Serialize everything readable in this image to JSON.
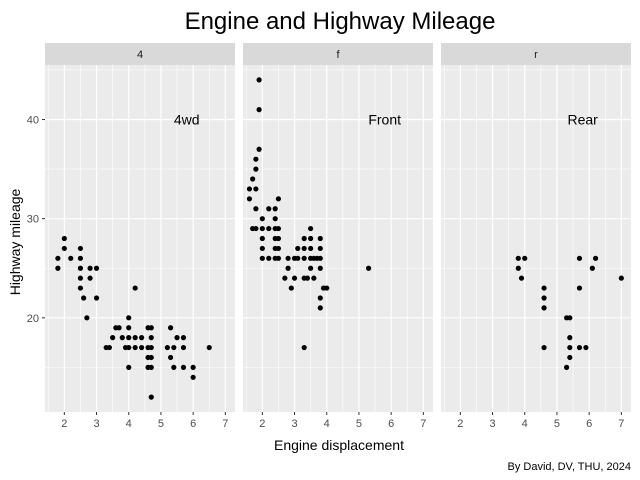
{
  "chart_data": {
    "type": "scatter",
    "title": "Engine and Highway Mileage",
    "xlabel": "Engine displacement",
    "ylabel": "Highway mileage",
    "caption": "By David, DV, THU, 2024",
    "xlim": [
      1.4,
      7.3
    ],
    "ylim": [
      10.5,
      45.5
    ],
    "x_ticks": [
      2,
      3,
      4,
      5,
      6,
      7
    ],
    "y_ticks": [
      20,
      30,
      40
    ],
    "grid": true,
    "panels": [
      {
        "strip": "4",
        "annotation": "4wd",
        "points": [
          [
            1.8,
            25
          ],
          [
            1.8,
            26
          ],
          [
            2.0,
            28
          ],
          [
            2.0,
            27
          ],
          [
            2.2,
            26
          ],
          [
            2.5,
            24
          ],
          [
            2.5,
            23
          ],
          [
            2.5,
            25
          ],
          [
            2.5,
            26
          ],
          [
            2.5,
            27
          ],
          [
            2.6,
            22
          ],
          [
            2.7,
            20
          ],
          [
            2.8,
            25
          ],
          [
            2.8,
            24
          ],
          [
            3.0,
            25
          ],
          [
            3.0,
            22
          ],
          [
            3.3,
            17
          ],
          [
            3.4,
            17
          ],
          [
            3.5,
            18
          ],
          [
            3.6,
            19
          ],
          [
            3.7,
            19
          ],
          [
            3.8,
            18
          ],
          [
            3.9,
            17
          ],
          [
            4.0,
            17
          ],
          [
            4.0,
            15
          ],
          [
            4.0,
            18
          ],
          [
            4.0,
            19
          ],
          [
            4.0,
            20
          ],
          [
            4.2,
            17
          ],
          [
            4.2,
            18
          ],
          [
            4.2,
            23
          ],
          [
            4.4,
            17
          ],
          [
            4.4,
            18
          ],
          [
            4.6,
            17
          ],
          [
            4.6,
            15
          ],
          [
            4.6,
            16
          ],
          [
            4.6,
            19
          ],
          [
            4.7,
            18
          ],
          [
            4.7,
            17
          ],
          [
            4.7,
            16
          ],
          [
            4.7,
            15
          ],
          [
            4.7,
            19
          ],
          [
            4.7,
            12
          ],
          [
            5.2,
            17
          ],
          [
            5.3,
            19
          ],
          [
            5.3,
            16
          ],
          [
            5.4,
            17
          ],
          [
            5.4,
            15
          ],
          [
            5.5,
            18
          ],
          [
            5.7,
            17
          ],
          [
            5.7,
            15
          ],
          [
            5.7,
            18
          ],
          [
            6.0,
            15
          ],
          [
            6.0,
            14
          ],
          [
            6.5,
            17
          ]
        ]
      },
      {
        "strip": "f",
        "annotation": "Front",
        "points": [
          [
            1.6,
            33
          ],
          [
            1.6,
            32
          ],
          [
            1.7,
            29
          ],
          [
            1.7,
            34
          ],
          [
            1.8,
            29
          ],
          [
            1.8,
            31
          ],
          [
            1.8,
            33
          ],
          [
            1.8,
            35
          ],
          [
            1.8,
            36
          ],
          [
            1.9,
            37
          ],
          [
            1.9,
            44
          ],
          [
            1.9,
            41
          ],
          [
            2.0,
            28
          ],
          [
            2.0,
            29
          ],
          [
            2.0,
            30
          ],
          [
            2.0,
            26
          ],
          [
            2.0,
            27
          ],
          [
            2.2,
            31
          ],
          [
            2.2,
            29
          ],
          [
            2.2,
            26
          ],
          [
            2.4,
            26
          ],
          [
            2.4,
            27
          ],
          [
            2.4,
            28
          ],
          [
            2.4,
            29
          ],
          [
            2.4,
            30
          ],
          [
            2.4,
            31
          ],
          [
            2.5,
            29
          ],
          [
            2.5,
            28
          ],
          [
            2.5,
            27
          ],
          [
            2.5,
            26
          ],
          [
            2.5,
            32
          ],
          [
            2.7,
            24
          ],
          [
            2.8,
            26
          ],
          [
            2.8,
            25
          ],
          [
            2.9,
            23
          ],
          [
            3.0,
            24
          ],
          [
            3.0,
            26
          ],
          [
            3.1,
            26
          ],
          [
            3.1,
            27
          ],
          [
            3.3,
            17
          ],
          [
            3.3,
            24
          ],
          [
            3.3,
            26
          ],
          [
            3.3,
            27
          ],
          [
            3.3,
            28
          ],
          [
            3.4,
            24
          ],
          [
            3.5,
            25
          ],
          [
            3.5,
            26
          ],
          [
            3.5,
            27
          ],
          [
            3.5,
            28
          ],
          [
            3.5,
            29
          ],
          [
            3.6,
            26
          ],
          [
            3.6,
            24
          ],
          [
            3.7,
            26
          ],
          [
            3.8,
            26
          ],
          [
            3.8,
            25
          ],
          [
            3.8,
            22
          ],
          [
            3.8,
            21
          ],
          [
            3.8,
            28
          ],
          [
            3.8,
            27
          ],
          [
            3.9,
            23
          ],
          [
            4.0,
            23
          ],
          [
            5.3,
            25
          ]
        ]
      },
      {
        "strip": "r",
        "annotation": "Rear",
        "points": [
          [
            3.8,
            26
          ],
          [
            3.8,
            25
          ],
          [
            3.9,
            24
          ],
          [
            4.0,
            26
          ],
          [
            4.6,
            23
          ],
          [
            4.6,
            22
          ],
          [
            4.6,
            21
          ],
          [
            4.6,
            17
          ],
          [
            5.3,
            20
          ],
          [
            5.3,
            15
          ],
          [
            5.4,
            20
          ],
          [
            5.4,
            16
          ],
          [
            5.4,
            17
          ],
          [
            5.4,
            18
          ],
          [
            5.7,
            26
          ],
          [
            5.7,
            23
          ],
          [
            5.7,
            17
          ],
          [
            5.9,
            17
          ],
          [
            6.1,
            25
          ],
          [
            6.2,
            26
          ],
          [
            7.0,
            24
          ]
        ]
      }
    ]
  }
}
